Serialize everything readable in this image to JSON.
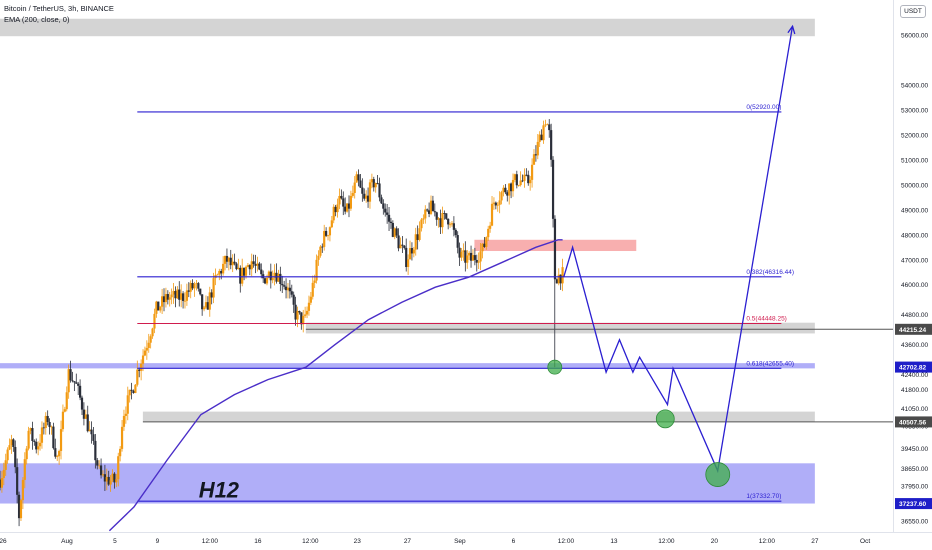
{
  "legend": {
    "symbol": "Bitcoin / TetherUS, 3h, BINANCE",
    "indicator": "EMA (200, close, 0)"
  },
  "currency_badge": "USDT",
  "colors": {
    "up": "#f29a12",
    "down": "#2a2e39",
    "ema": "#4a2ec8",
    "fib_line": "#2b1fd1",
    "fib_mid": "#d01c4e",
    "zone_blue": "#8e8cf5",
    "zone_gray": "#b8b8b8",
    "zone_red": "#f7a1a1",
    "projection": "#2b1fd1",
    "circle": "#3fae4a"
  },
  "chart_data": {
    "type": "candlestick",
    "ylim": [
      36100,
      57400
    ],
    "y_ticks": [
      56000,
      54000,
      53000,
      52000,
      51000,
      50000,
      49000,
      48000,
      47000,
      46000,
      44800,
      43600,
      42400,
      41800,
      41050,
      40350,
      39450,
      38650,
      37950,
      36550
    ],
    "x_ticks": [
      {
        "label": "26",
        "x": 0
      },
      {
        "label": "Aug",
        "x": 6
      },
      {
        "label": "5",
        "x": 10.3
      },
      {
        "label": "9",
        "x": 14.1
      },
      {
        "label": "12:00",
        "x": 18.8
      },
      {
        "label": "16",
        "x": 23.1
      },
      {
        "label": "12:00",
        "x": 27.8
      },
      {
        "label": "23",
        "x": 32
      },
      {
        "label": "27",
        "x": 36.5
      },
      {
        "label": "Sep",
        "x": 41.2
      },
      {
        "label": "6",
        "x": 46
      },
      {
        "label": "12:00",
        "x": 50.7
      },
      {
        "label": "13",
        "x": 55
      },
      {
        "label": "12:00",
        "x": 59.7
      },
      {
        "label": "20",
        "x": 64
      },
      {
        "label": "12:00",
        "x": 68.7
      },
      {
        "label": "27",
        "x": 73
      },
      {
        "label": "Oct",
        "x": 77.5
      }
    ],
    "price_anchors": [
      [
        0,
        38200
      ],
      [
        1.1,
        39800
      ],
      [
        1.7,
        36700
      ],
      [
        2.5,
        40200
      ],
      [
        3.3,
        39500
      ],
      [
        4.3,
        40700
      ],
      [
        5.2,
        38900
      ],
      [
        6.1,
        42500
      ],
      [
        6.8,
        42000
      ],
      [
        7.8,
        40500
      ],
      [
        9,
        38300
      ],
      [
        10.4,
        38100
      ],
      [
        11,
        40800
      ],
      [
        11.8,
        41700
      ],
      [
        12.4,
        42700
      ],
      [
        13.2,
        43700
      ],
      [
        14,
        45000
      ],
      [
        15,
        45500
      ],
      [
        16.3,
        45500
      ],
      [
        17.5,
        46000
      ],
      [
        18.3,
        44800
      ],
      [
        19.3,
        46200
      ],
      [
        20.3,
        47000
      ],
      [
        21.5,
        46300
      ],
      [
        22.5,
        47000
      ],
      [
        23.5,
        46200
      ],
      [
        24.5,
        46600
      ],
      [
        25.7,
        45900
      ],
      [
        26.5,
        44800
      ],
      [
        27.3,
        44500
      ],
      [
        28,
        45900
      ],
      [
        28.8,
        47700
      ],
      [
        29.5,
        48300
      ],
      [
        30.3,
        49500
      ],
      [
        31,
        48800
      ],
      [
        32,
        50200
      ],
      [
        32.6,
        49300
      ],
      [
        33.6,
        50200
      ],
      [
        34.5,
        48900
      ],
      [
        35.5,
        47900
      ],
      [
        36.4,
        47000
      ],
      [
        37.6,
        48200
      ],
      [
        38.5,
        49100
      ],
      [
        39.5,
        48600
      ],
      [
        40.3,
        48700
      ],
      [
        41.2,
        47100
      ],
      [
        42.2,
        47000
      ],
      [
        43.3,
        47400
      ],
      [
        44.2,
        49300
      ],
      [
        45.2,
        49800
      ],
      [
        46.3,
        50200
      ],
      [
        47.3,
        50100
      ],
      [
        48.2,
        51600
      ],
      [
        48.9,
        52700
      ],
      [
        49.3,
        51800
      ],
      [
        49.7,
        46300
      ],
      [
        50.4,
        46400
      ]
    ],
    "candle_count": 296,
    "x_extent": [
      0,
      80
    ],
    "last_candle_x": 50.4,
    "ema200": [
      [
        9.8,
        36150
      ],
      [
        12,
        37100
      ],
      [
        15,
        39000
      ],
      [
        18,
        40800
      ],
      [
        21,
        41600
      ],
      [
        24,
        42200
      ],
      [
        27.4,
        42700
      ],
      [
        30,
        43600
      ],
      [
        33,
        44600
      ],
      [
        36,
        45300
      ],
      [
        39,
        45900
      ],
      [
        42,
        46300
      ],
      [
        45,
        46900
      ],
      [
        48,
        47500
      ],
      [
        50,
        47800
      ],
      [
        50.4,
        47800
      ]
    ],
    "fib_levels": [
      {
        "label": "0(52920.00)",
        "price": 52920,
        "color": "fib_line"
      },
      {
        "label": "0.382(46316.44)",
        "price": 46316.44,
        "color": "fib_line"
      },
      {
        "label": "0.5(44448.25)",
        "price": 44448.25,
        "color": "fib_mid"
      },
      {
        "label": "0.618(42655.40)",
        "price": 42655.4,
        "color": "fib_line"
      },
      {
        "label": "1(37332.70)",
        "price": 37332.7,
        "color": "fib_line"
      }
    ],
    "fib_x_start": 12.3,
    "fib_x_end": 70,
    "zones": [
      {
        "type": "gray",
        "x1": 0,
        "x2": 73,
        "p1": 55950,
        "p2": 56650
      },
      {
        "type": "red",
        "x1": 42.5,
        "x2": 57,
        "p1": 47350,
        "p2": 47800
      },
      {
        "type": "gray",
        "x1": 27.4,
        "x2": 73,
        "p1": 44050,
        "p2": 44480
      },
      {
        "type": "blue",
        "x1": 0,
        "x2": 73,
        "p1": 42650,
        "p2": 42860
      },
      {
        "type": "gray",
        "x1": 12.8,
        "x2": 73,
        "p1": 40520,
        "p2": 40920
      },
      {
        "type": "blue",
        "x1": 0,
        "x2": 73,
        "p1": 37240,
        "p2": 38850
      }
    ],
    "horizontal_lines": [
      {
        "x1": 12.8,
        "p": 40507.56,
        "color": "#555555"
      },
      {
        "x1": 27.4,
        "p": 44215.24,
        "color": "#555555"
      }
    ],
    "price_tags": [
      {
        "label": "44215.24",
        "price": 44215.24,
        "bg": "#4a4a4a"
      },
      {
        "label": "42702.82",
        "price": 42702.82,
        "bg": "#1e1ec8"
      },
      {
        "label": "40507.56",
        "price": 40507.56,
        "bg": "#4a4a4a"
      },
      {
        "label": "37237.60",
        "price": 37237.6,
        "bg": "#1e1ec8"
      }
    ],
    "projection_path": [
      [
        50.5,
        46300
      ],
      [
        51.3,
        47500
      ],
      [
        54.3,
        42500
      ],
      [
        55.5,
        43800
      ],
      [
        56.7,
        42500
      ],
      [
        57.3,
        43100
      ],
      [
        59.8,
        41200
      ],
      [
        60.3,
        42650
      ],
      [
        64.3,
        38550
      ],
      [
        71,
        56350
      ]
    ],
    "circles": [
      {
        "x": 49.7,
        "price": 42700,
        "r": 7
      },
      {
        "x": 59.6,
        "price": 40630,
        "r": 9
      },
      {
        "x": 64.3,
        "price": 38400,
        "r": 12
      }
    ],
    "annotation": {
      "text": "H12",
      "x": 17.8,
      "price": 37850
    }
  }
}
